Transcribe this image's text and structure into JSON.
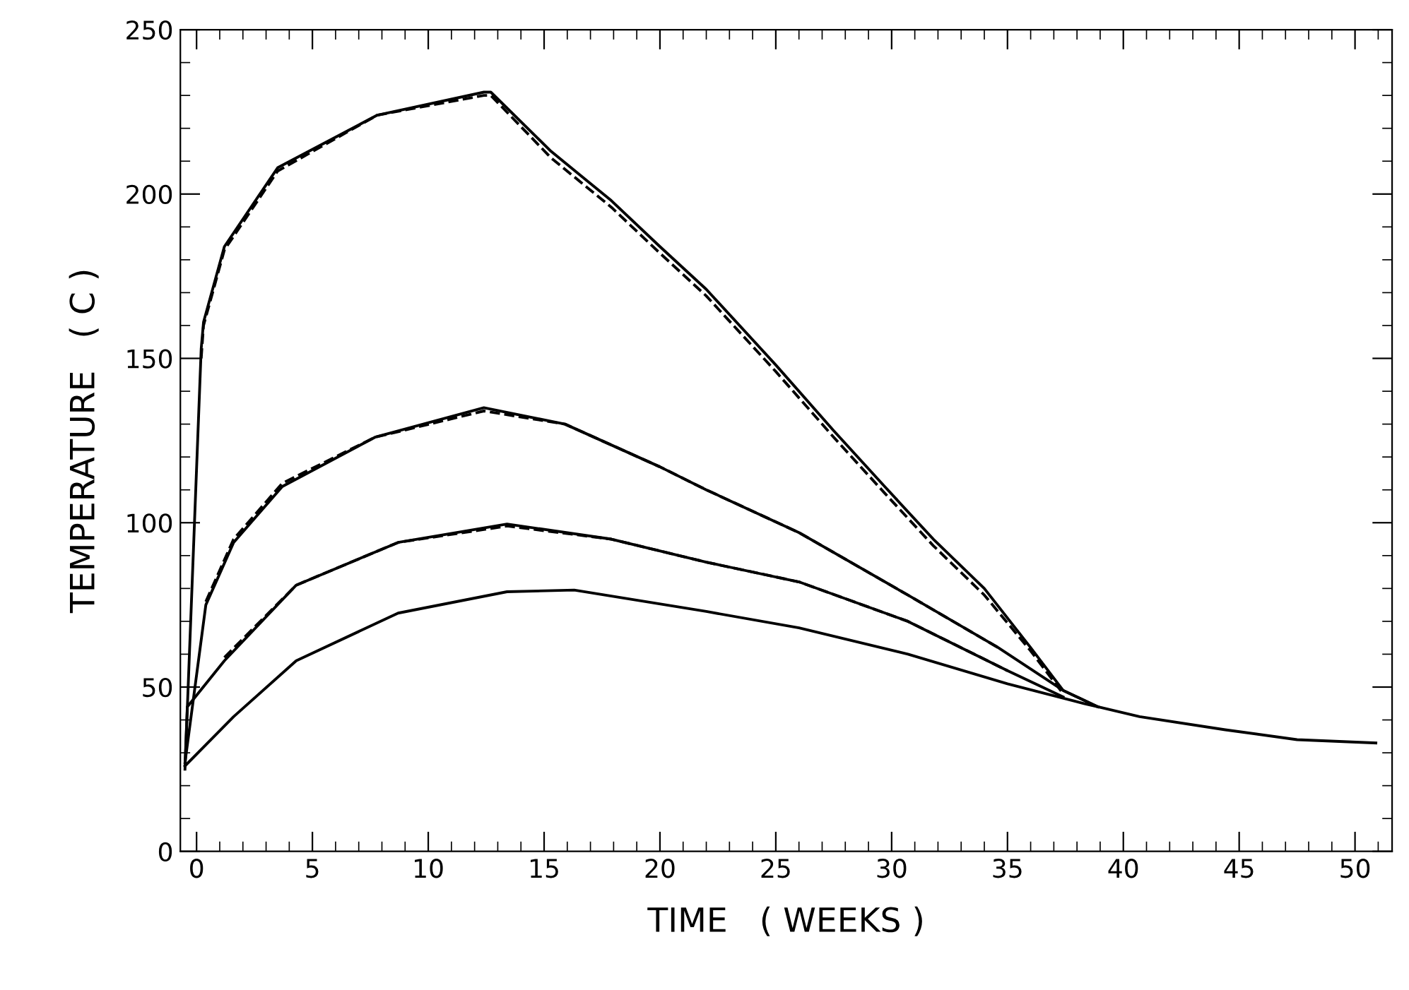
{
  "chart_data": {
    "type": "line",
    "xlabel": "TIME   ( WEEKS )",
    "ylabel": "TEMPERATURE   ( C )",
    "xlim": [
      -0.7,
      51.6
    ],
    "ylim": [
      0,
      250
    ],
    "xticks": [
      0,
      5,
      10,
      15,
      20,
      25,
      30,
      35,
      40,
      45,
      50
    ],
    "yticks": [
      0,
      50,
      100,
      150,
      200,
      250
    ],
    "grid": false,
    "marker": "none",
    "series": [
      {
        "color": "#000000",
        "line_style": "solid",
        "x": [
          -0.5,
          0.2,
          0.3,
          1.2,
          3.5,
          7.8,
          12.4,
          12.7,
          15.3,
          17.9,
          20,
          22,
          25,
          27.5,
          29.7,
          31.8,
          34,
          36,
          37.4,
          38.9,
          40.7,
          44.4,
          47.5,
          50.9
        ],
        "values": [
          25,
          153,
          161,
          184,
          208,
          224,
          231,
          231,
          213,
          198,
          184,
          171,
          148,
          128,
          111,
          95,
          80,
          62,
          49,
          44,
          41,
          37,
          34,
          33
        ]
      },
      {
        "color": "#000000",
        "line_style": "dashed",
        "x": [
          0.2,
          0.3,
          1.2,
          3.5,
          7.8,
          12.4,
          12.7,
          15.3,
          17.9,
          20,
          22,
          25,
          27.5,
          29.7,
          31.8,
          34,
          36,
          37.4
        ],
        "values": [
          150,
          160,
          183,
          207,
          224,
          230,
          230,
          211,
          196,
          182,
          169,
          146,
          126,
          109,
          93,
          78,
          61,
          48
        ]
      },
      {
        "color": "#000000",
        "line_style": "solid",
        "x": [
          -0.5,
          0.4,
          1.6,
          3.7,
          7.7,
          12.4,
          15.9,
          20,
          22,
          26,
          30.7,
          34.6,
          37.4,
          38.9
        ],
        "values": [
          27,
          75,
          94,
          111,
          126,
          135,
          130,
          117,
          110,
          97,
          78,
          62,
          49,
          44
        ]
      },
      {
        "color": "#000000",
        "line_style": "dashed",
        "x": [
          0.4,
          1.6,
          3.7,
          7.7,
          12.4,
          15.9,
          20,
          22,
          26,
          30.7,
          34.6
        ],
        "values": [
          76,
          95,
          112,
          126,
          134,
          130,
          117,
          110,
          97,
          78,
          62
        ]
      },
      {
        "color": "#000000",
        "line_style": "solid",
        "x": [
          -0.5,
          -0.4,
          1.2,
          4.3,
          8.7,
          13.4,
          17.9,
          22,
          26,
          30.7,
          35,
          37.4
        ],
        "values": [
          26,
          44,
          58,
          81,
          94,
          99.6,
          95,
          88,
          82,
          70,
          55,
          47
        ]
      },
      {
        "color": "#000000",
        "line_style": "dashed",
        "x": [
          1.2,
          4.3,
          8.7,
          13.4,
          17.9,
          22,
          26,
          30.7,
          35
        ],
        "values": [
          59,
          81,
          94,
          99,
          95,
          88,
          82,
          70,
          55
        ]
      },
      {
        "color": "#000000",
        "line_style": "solid",
        "x": [
          -0.5,
          1.6,
          4.3,
          8.7,
          13.4,
          16.3,
          22,
          26,
          30.7,
          35,
          38.3,
          38.9
        ],
        "values": [
          26,
          41,
          58,
          72.5,
          79,
          79.5,
          73,
          68,
          60,
          51,
          45,
          44
        ]
      }
    ]
  }
}
